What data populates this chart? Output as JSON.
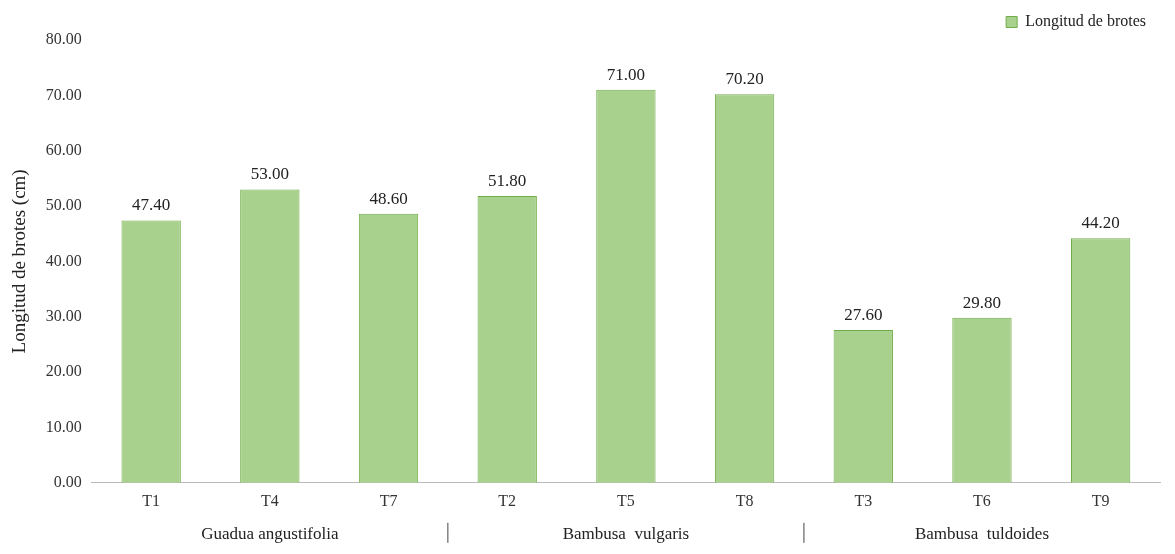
{
  "chart_data": {
    "type": "bar",
    "ylabel": "Longitud de brotes (cm)",
    "categories": [
      "T1",
      "T4",
      "T7",
      "T2",
      "T5",
      "T8",
      "T3",
      "T6",
      "T9"
    ],
    "series": [
      {
        "name": "Longitud de brotes",
        "color": "#a9d18e",
        "values": [
          47.4,
          53.0,
          48.6,
          51.8,
          71.0,
          70.2,
          27.6,
          29.8,
          44.2
        ],
        "value_labels": [
          "47.40",
          "53.00",
          "48.60",
          "51.80",
          "71.00",
          "70.20",
          "27.60",
          "29.80",
          "44.20"
        ]
      }
    ],
    "ylim": [
      0,
      80
    ],
    "yticks": [
      {
        "value": 0,
        "label": "0.00"
      },
      {
        "value": 10,
        "label": "10.00"
      },
      {
        "value": 20,
        "label": "20.00"
      },
      {
        "value": 30,
        "label": "30.00"
      },
      {
        "value": 40,
        "label": "40.00"
      },
      {
        "value": 50,
        "label": "50.00"
      },
      {
        "value": 60,
        "label": "60.00"
      },
      {
        "value": 70,
        "label": "70.00"
      },
      {
        "value": 80,
        "label": "80.00"
      }
    ],
    "annotations": [
      "Guadua angustifolia",
      "Bambusa  vulgaris",
      "Bambusa  tuldoides"
    ],
    "grid": false,
    "legend": "top right"
  }
}
